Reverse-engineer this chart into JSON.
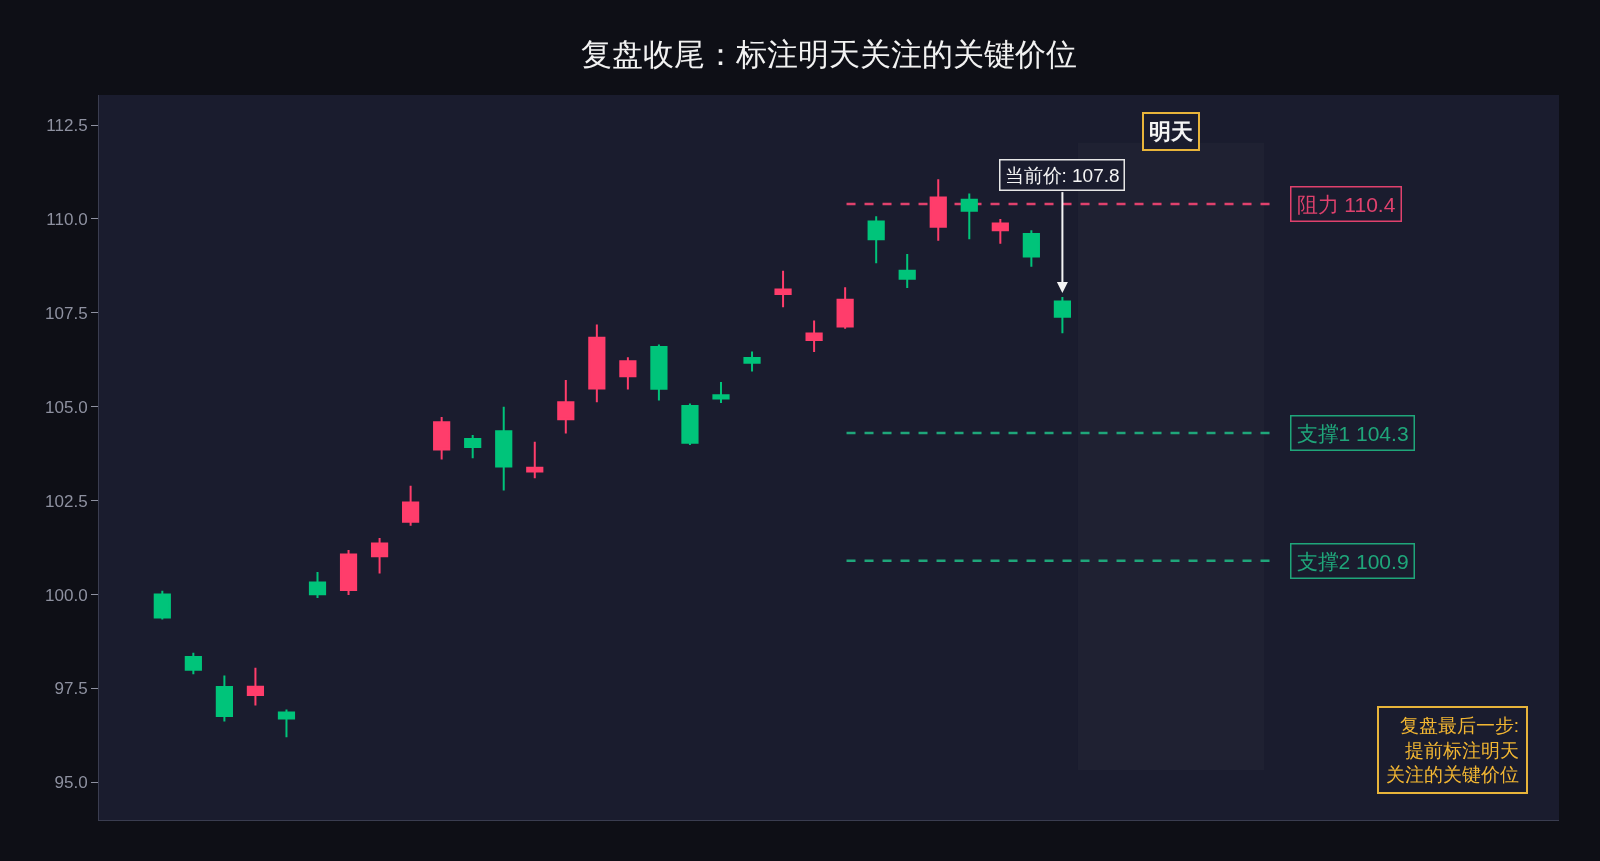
{
  "chart_data": {
    "type": "candlestick",
    "title": "复盘收尾：标注明天关注的关键价位",
    "categories": [
      null,
      null,
      null,
      null,
      null,
      null,
      null,
      null,
      null,
      null,
      null,
      null,
      null,
      null,
      null,
      null,
      null,
      null,
      null,
      null,
      null,
      null,
      null,
      null,
      null,
      null,
      null,
      null,
      null,
      null
    ],
    "ohlc": [
      [
        99.39,
        100.1,
        99.34,
        100.0
      ],
      [
        98.0,
        98.45,
        97.88,
        98.34
      ],
      [
        96.77,
        97.85,
        96.62,
        97.54
      ],
      [
        97.55,
        98.05,
        97.05,
        97.33
      ],
      [
        96.7,
        96.94,
        96.2,
        96.86
      ],
      [
        100.01,
        100.6,
        99.91,
        100.32
      ],
      [
        101.07,
        101.19,
        99.99,
        100.12
      ],
      [
        101.36,
        101.51,
        100.56,
        101.02
      ],
      [
        102.45,
        102.9,
        101.83,
        101.94
      ],
      [
        104.59,
        104.73,
        103.6,
        103.86
      ],
      [
        103.93,
        104.25,
        103.63,
        104.14
      ],
      [
        103.41,
        105.0,
        102.77,
        104.35
      ],
      [
        103.38,
        104.07,
        103.1,
        103.28
      ],
      [
        105.12,
        105.71,
        104.29,
        104.67
      ],
      [
        106.84,
        107.19,
        105.12,
        105.49
      ],
      [
        106.21,
        106.32,
        105.46,
        105.81
      ],
      [
        105.48,
        106.66,
        105.17,
        106.59
      ],
      [
        104.04,
        105.09,
        103.98,
        105.02
      ],
      [
        105.22,
        105.66,
        105.1,
        105.31
      ],
      [
        106.17,
        106.47,
        105.94,
        106.3
      ],
      [
        108.12,
        108.62,
        107.65,
        108.0
      ],
      [
        106.95,
        107.3,
        106.46,
        106.78
      ],
      [
        107.85,
        108.18,
        107.08,
        107.14
      ],
      [
        109.46,
        110.07,
        108.82,
        109.93
      ],
      [
        108.41,
        109.07,
        108.16,
        108.62
      ],
      [
        110.57,
        111.06,
        109.42,
        109.79
      ],
      [
        110.22,
        110.68,
        109.46,
        110.51
      ],
      [
        109.88,
        110.0,
        109.34,
        109.7
      ],
      [
        109.0,
        109.7,
        108.73,
        109.6
      ],
      [
        107.4,
        107.92,
        106.96,
        107.8
      ]
    ],
    "colors": [
      "#00c47a",
      "#00c47a",
      "#00c47a",
      "#ff3d6b",
      "#00c47a",
      "#00c47a",
      "#ff3d6b",
      "#ff3d6b",
      "#ff3d6b",
      "#ff3d6b",
      "#00c47a",
      "#00c47a",
      "#ff3d6b",
      "#ff3d6b",
      "#ff3d6b",
      "#ff3d6b",
      "#00c47a",
      "#00c47a",
      "#00c47a",
      "#00c47a",
      "#ff3d6b",
      "#ff3d6b",
      "#ff3d6b",
      "#00c47a",
      "#00c47a",
      "#ff3d6b",
      "#00c47a",
      "#ff3d6b",
      "#00c47a",
      "#00c47a"
    ],
    "ylim": [
      94.0,
      113.3
    ],
    "yticks": [
      {
        "value": 95,
        "label": "95.0"
      },
      97.5,
      {
        "value": 100,
        "label": "100.0"
      },
      102.5,
      {
        "value": 105,
        "label": "105.0"
      },
      107.5,
      {
        "value": 110,
        "label": "110.0"
      },
      112.5
    ],
    "tick_labels": "y",
    "ref_lines": [
      {
        "axis": "y",
        "value": 110.4,
        "label": "阻力 110.4",
        "color": "#e0416d",
        "line_style": "dashed"
      },
      {
        "axis": "y",
        "value": 104.3,
        "label": "支撑1 104.3",
        "color": "#1fa67a",
        "line_style": "dashed"
      },
      {
        "axis": "y",
        "value": 100.9,
        "label": "支撑2 100.9",
        "color": "#1fa67a",
        "line_style": "dashed"
      }
    ],
    "annotations": [
      "明天",
      "当前价: 107.8",
      "复盘最后一步:提前标注明天关注的关键价位"
    ]
  }
}
